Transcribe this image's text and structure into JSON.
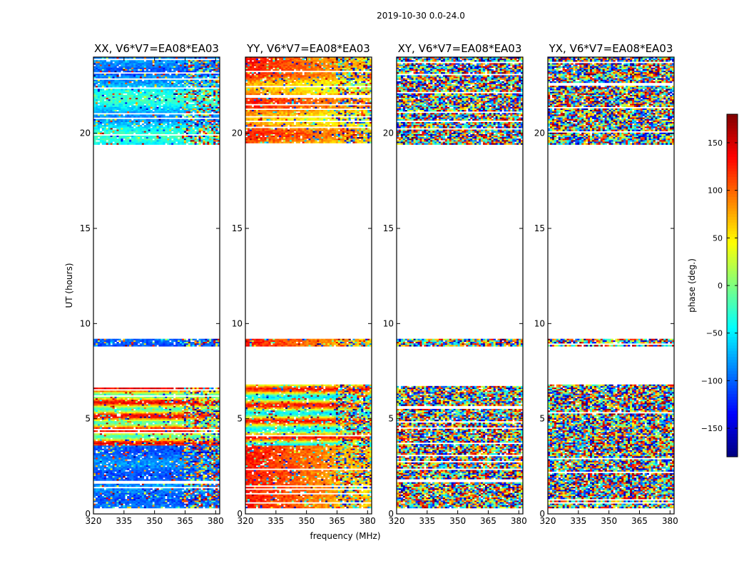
{
  "figure": {
    "suptitle": "2019-10-30 0.0-24.0",
    "xlabel": "frequency (MHz)",
    "ylabel": "UT (hours)"
  },
  "colorbar": {
    "label": "phase (deg.)",
    "range": [
      -180,
      180
    ],
    "ticks": [
      150,
      100,
      50,
      0,
      -50,
      -100,
      -150
    ],
    "tick_labels": [
      "150",
      "100",
      "50",
      "0",
      "−50",
      "−100",
      "−150"
    ],
    "colormap": "jet",
    "colormap_stops": [
      "#00007f",
      "#0000ff",
      "#007fff",
      "#00ffff",
      "#7fff7f",
      "#ffff00",
      "#ff7f00",
      "#ff0000",
      "#7f0000"
    ]
  },
  "chart_data": {
    "type": "heatmap",
    "panels": [
      {
        "title": "XX, V6*V7=EA08*EA03",
        "style": "coherent_a"
      },
      {
        "title": "YY, V6*V7=EA08*EA03",
        "style": "coherent_b"
      },
      {
        "title": "XY, V6*V7=EA08*EA03",
        "style": "noise"
      },
      {
        "title": "YX, V6*V7=EA08*EA03",
        "style": "noise"
      }
    ],
    "x_range": [
      320,
      382
    ],
    "x_ticks": [
      320,
      335,
      350,
      365,
      380
    ],
    "y_range": [
      0,
      24
    ],
    "y_ticks": [
      0,
      5,
      10,
      15,
      20
    ],
    "data_present_hours": [
      [
        0.3,
        6.8
      ],
      [
        8.8,
        9.2
      ],
      [
        19.4,
        24.0
      ]
    ],
    "value_units": "phase (deg.)"
  }
}
